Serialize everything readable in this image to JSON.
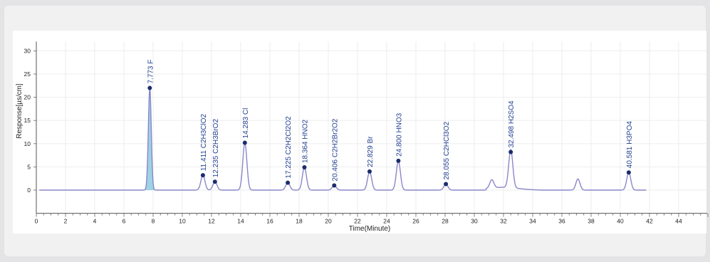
{
  "chart_data": {
    "type": "line",
    "xlabel": "Time(Minute)",
    "ylabel": "Response[µs/cm]",
    "xlim": [
      0,
      46
    ],
    "ylim": [
      -5,
      32
    ],
    "x_ticks": [
      0,
      2,
      4,
      6,
      8,
      10,
      12,
      14,
      16,
      18,
      20,
      22,
      24,
      26,
      28,
      30,
      32,
      34,
      36,
      38,
      40,
      42,
      44
    ],
    "y_ticks": [
      0,
      5,
      10,
      15,
      20,
      25,
      30
    ],
    "peaks": [
      {
        "time": 7.773,
        "height": 22.0,
        "label": "7.773 F"
      },
      {
        "time": 11.411,
        "height": 3.2,
        "label": "11.411 C2H3ClO2"
      },
      {
        "time": 12.235,
        "height": 1.8,
        "label": "12.235 C2H3BrO2"
      },
      {
        "time": 14.283,
        "height": 10.2,
        "label": "14.283 Cl"
      },
      {
        "time": 17.225,
        "height": 1.6,
        "label": "17.225 C2H2Cl2O2"
      },
      {
        "time": 18.364,
        "height": 4.9,
        "label": "18.364 HNO2"
      },
      {
        "time": 20.406,
        "height": 1.0,
        "label": "20.406 C2H2Br2O2"
      },
      {
        "time": 22.829,
        "height": 4.0,
        "label": "22.829 Br"
      },
      {
        "time": 24.8,
        "height": 6.3,
        "label": "24.800 HNO3"
      },
      {
        "time": 28.055,
        "height": 1.3,
        "label": "28.055 C2HCl3O2"
      },
      {
        "time": 32.498,
        "height": 8.2,
        "label": "32.498 H2SO4"
      },
      {
        "time": 40.581,
        "height": 3.8,
        "label": "40.581 H3PO4"
      }
    ],
    "unlabeled_peaks": [
      {
        "time": 31.2,
        "height": 1.8
      },
      {
        "time": 37.1,
        "height": 2.4
      }
    ]
  }
}
